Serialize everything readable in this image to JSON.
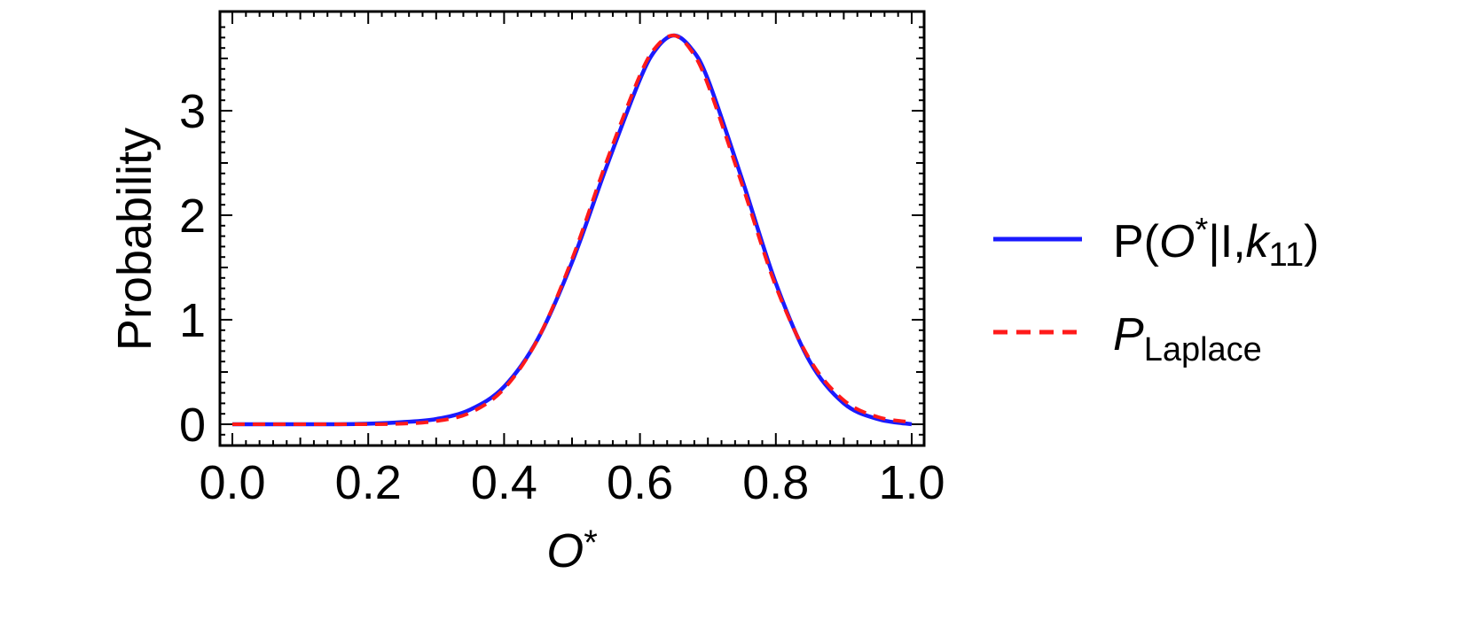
{
  "chart_data": {
    "type": "line",
    "title": "",
    "xlabel": "O*",
    "ylabel": "Probability",
    "xlim": [
      0.0,
      1.0
    ],
    "ylim": [
      -0.2,
      3.9
    ],
    "x_ticks": [
      "0.0",
      "0.2",
      "0.4",
      "0.6",
      "0.8",
      "1.0"
    ],
    "y_ticks": [
      "0",
      "1",
      "2",
      "3"
    ],
    "grid": false,
    "legend_position": "right",
    "x": [
      0.0,
      0.05,
      0.1,
      0.15,
      0.2,
      0.25,
      0.3,
      0.35,
      0.4,
      0.45,
      0.5,
      0.55,
      0.6,
      0.625,
      0.65,
      0.675,
      0.7,
      0.75,
      0.8,
      0.85,
      0.9,
      0.95,
      1.0
    ],
    "series": [
      {
        "name": "P(O*|I,k11)",
        "color": "#1a1aff",
        "dash": "solid",
        "values": [
          0.0,
          0.0,
          0.0,
          0.0,
          0.005,
          0.02,
          0.05,
          0.14,
          0.36,
          0.82,
          1.55,
          2.45,
          3.3,
          3.6,
          3.72,
          3.6,
          3.3,
          2.35,
          1.35,
          0.6,
          0.2,
          0.05,
          0.0
        ]
      },
      {
        "name": "P_Laplace",
        "color": "#ff1a1a",
        "dash": "dashed",
        "values": [
          0.0,
          0.0,
          0.0,
          0.0,
          0.0,
          0.005,
          0.03,
          0.11,
          0.34,
          0.82,
          1.58,
          2.5,
          3.34,
          3.62,
          3.72,
          3.58,
          3.25,
          2.3,
          1.32,
          0.62,
          0.23,
          0.07,
          0.02
        ]
      }
    ]
  },
  "legend": {
    "items": [
      {
        "main": "P(",
        "italic": "O",
        "sup": "*",
        "rest": "|I,",
        "italic2": "k",
        "sub": "11",
        "close": ")"
      },
      {
        "main": "",
        "italic": "P",
        "sub": "Laplace"
      }
    ]
  }
}
